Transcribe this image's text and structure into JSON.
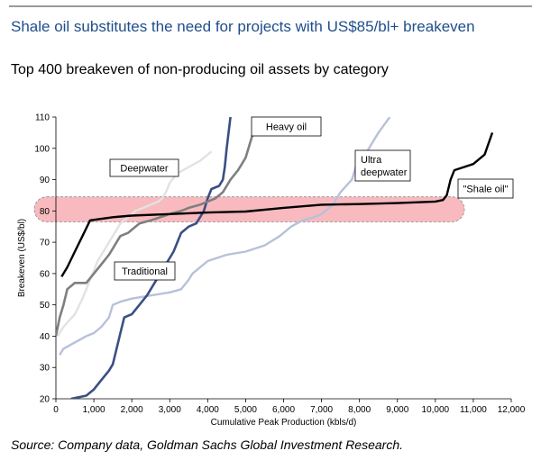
{
  "header": {
    "title": "Shale oil substitutes the need for projects with US$85/bl+ breakeven",
    "subtitle": "Top 400 breakeven of non-producing oil assets by category"
  },
  "footer": {
    "source": "Source:  Company data, Goldman Sachs Global Investment Research."
  },
  "chart_data": {
    "type": "line",
    "xlabel": "Cumulative Peak Production (kbls/d)",
    "ylabel": "Breakeven (US$/bl)",
    "xlim": [
      0,
      12000
    ],
    "ylim": [
      20,
      110
    ],
    "x_ticks": [
      0,
      1000,
      2000,
      3000,
      4000,
      5000,
      6000,
      7000,
      8000,
      9000,
      10000,
      11000,
      12000
    ],
    "x_tick_labels": [
      "0",
      "1,000",
      "2,000",
      "3,000",
      "4,000",
      "5,000",
      "6,000",
      "7,000",
      "8,000",
      "9,000",
      "10,000",
      "11,000",
      "12,000"
    ],
    "y_ticks": [
      20,
      30,
      40,
      50,
      60,
      70,
      80,
      90,
      100,
      110
    ],
    "y_tick_labels": [
      "20",
      "30",
      "40",
      "50",
      "60",
      "70",
      "80",
      "90",
      "100",
      "110"
    ],
    "grid": false,
    "highlight_band": {
      "y_min": 76.5,
      "y_max": 84.5,
      "color": "#f5a3a8"
    },
    "series": [
      {
        "name": "Deepwater",
        "color": "#e2e2e2",
        "points": [
          [
            50,
            40
          ],
          [
            200,
            43
          ],
          [
            500,
            47
          ],
          [
            700,
            52
          ],
          [
            900,
            58
          ],
          [
            1100,
            64
          ],
          [
            1300,
            68
          ],
          [
            1500,
            72
          ],
          [
            1700,
            76
          ],
          [
            1900,
            78
          ],
          [
            2100,
            80
          ],
          [
            2300,
            81
          ],
          [
            2500,
            82
          ],
          [
            2700,
            83
          ],
          [
            2800,
            84
          ],
          [
            2900,
            86
          ],
          [
            3000,
            89
          ],
          [
            3200,
            92
          ],
          [
            3500,
            94
          ],
          [
            3800,
            96
          ],
          [
            4100,
            99
          ]
        ]
      },
      {
        "name": "Traditional",
        "color": "#b7c1d9",
        "points": [
          [
            100,
            34
          ],
          [
            200,
            36
          ],
          [
            500,
            38
          ],
          [
            800,
            40
          ],
          [
            1000,
            41
          ],
          [
            1200,
            43
          ],
          [
            1400,
            46
          ],
          [
            1500,
            50
          ],
          [
            1700,
            51
          ],
          [
            2000,
            52
          ],
          [
            2500,
            53
          ],
          [
            3000,
            54
          ],
          [
            3300,
            55
          ],
          [
            3500,
            58
          ],
          [
            3600,
            60
          ],
          [
            3800,
            62
          ],
          [
            4000,
            64
          ],
          [
            4500,
            66
          ],
          [
            5000,
            67
          ],
          [
            5500,
            69
          ],
          [
            5900,
            72
          ],
          [
            6200,
            75
          ],
          [
            6500,
            77
          ],
          [
            6800,
            78
          ],
          [
            7000,
            79
          ],
          [
            7300,
            82
          ],
          [
            7500,
            86
          ],
          [
            7800,
            90
          ],
          [
            7900,
            94
          ],
          [
            8100,
            97
          ],
          [
            8300,
            101
          ],
          [
            8500,
            105
          ],
          [
            8800,
            110
          ]
        ]
      },
      {
        "name": "Ultra deepwater",
        "color": "#3b4f85",
        "points": [
          [
            400,
            20
          ],
          [
            800,
            21
          ],
          [
            1000,
            23
          ],
          [
            1200,
            26
          ],
          [
            1400,
            29
          ],
          [
            1500,
            31
          ],
          [
            1600,
            36
          ],
          [
            1700,
            41
          ],
          [
            1800,
            46
          ],
          [
            2000,
            47
          ],
          [
            2200,
            50
          ],
          [
            2400,
            53
          ],
          [
            2500,
            55
          ],
          [
            2600,
            57
          ],
          [
            2700,
            59
          ],
          [
            2800,
            61
          ],
          [
            2900,
            63
          ],
          [
            3000,
            65
          ],
          [
            3100,
            67
          ],
          [
            3200,
            70
          ],
          [
            3300,
            73
          ],
          [
            3500,
            75
          ],
          [
            3700,
            76
          ],
          [
            3800,
            78
          ],
          [
            3900,
            80
          ],
          [
            4000,
            84
          ],
          [
            4100,
            87
          ],
          [
            4300,
            88
          ],
          [
            4400,
            90
          ],
          [
            4450,
            94
          ],
          [
            4500,
            100
          ],
          [
            4550,
            105
          ],
          [
            4600,
            110
          ]
        ]
      },
      {
        "name": "Heavy oil",
        "color": "#7f7f7f",
        "points": [
          [
            0,
            40
          ],
          [
            100,
            46
          ],
          [
            200,
            50
          ],
          [
            300,
            55
          ],
          [
            500,
            57
          ],
          [
            800,
            57
          ],
          [
            1000,
            60
          ],
          [
            1200,
            63
          ],
          [
            1400,
            66
          ],
          [
            1600,
            70
          ],
          [
            1700,
            72
          ],
          [
            1900,
            73
          ],
          [
            2200,
            76
          ],
          [
            2500,
            77
          ],
          [
            3000,
            79
          ],
          [
            3300,
            80
          ],
          [
            3500,
            81
          ],
          [
            3800,
            82
          ],
          [
            4000,
            83
          ],
          [
            4200,
            84
          ],
          [
            4400,
            86
          ],
          [
            4600,
            90
          ],
          [
            4800,
            93
          ],
          [
            4900,
            95
          ],
          [
            5000,
            97
          ],
          [
            5100,
            101
          ],
          [
            5200,
            105
          ],
          [
            5300,
            110
          ]
        ]
      },
      {
        "name": "\"Shale oil\"",
        "color": "#000000",
        "points": [
          [
            150,
            59
          ],
          [
            300,
            62
          ],
          [
            500,
            67
          ],
          [
            700,
            72
          ],
          [
            900,
            77
          ],
          [
            1500,
            78
          ],
          [
            2000,
            78.5
          ],
          [
            3000,
            79
          ],
          [
            4000,
            79.5
          ],
          [
            5000,
            79.8
          ],
          [
            6000,
            81
          ],
          [
            7000,
            82
          ],
          [
            8000,
            82.2
          ],
          [
            9000,
            82.5
          ],
          [
            10000,
            83
          ],
          [
            10200,
            83.5
          ],
          [
            10300,
            85
          ],
          [
            10400,
            90
          ],
          [
            10500,
            93
          ],
          [
            11000,
            95
          ],
          [
            11300,
            98
          ],
          [
            11500,
            105
          ]
        ]
      }
    ],
    "annotations": [
      {
        "text": "Heavy oil"
      },
      {
        "text": "Deepwater"
      },
      {
        "text": "Ultra deepwater"
      },
      {
        "text": "\"Shale oil\""
      },
      {
        "text": "Traditional"
      }
    ]
  }
}
